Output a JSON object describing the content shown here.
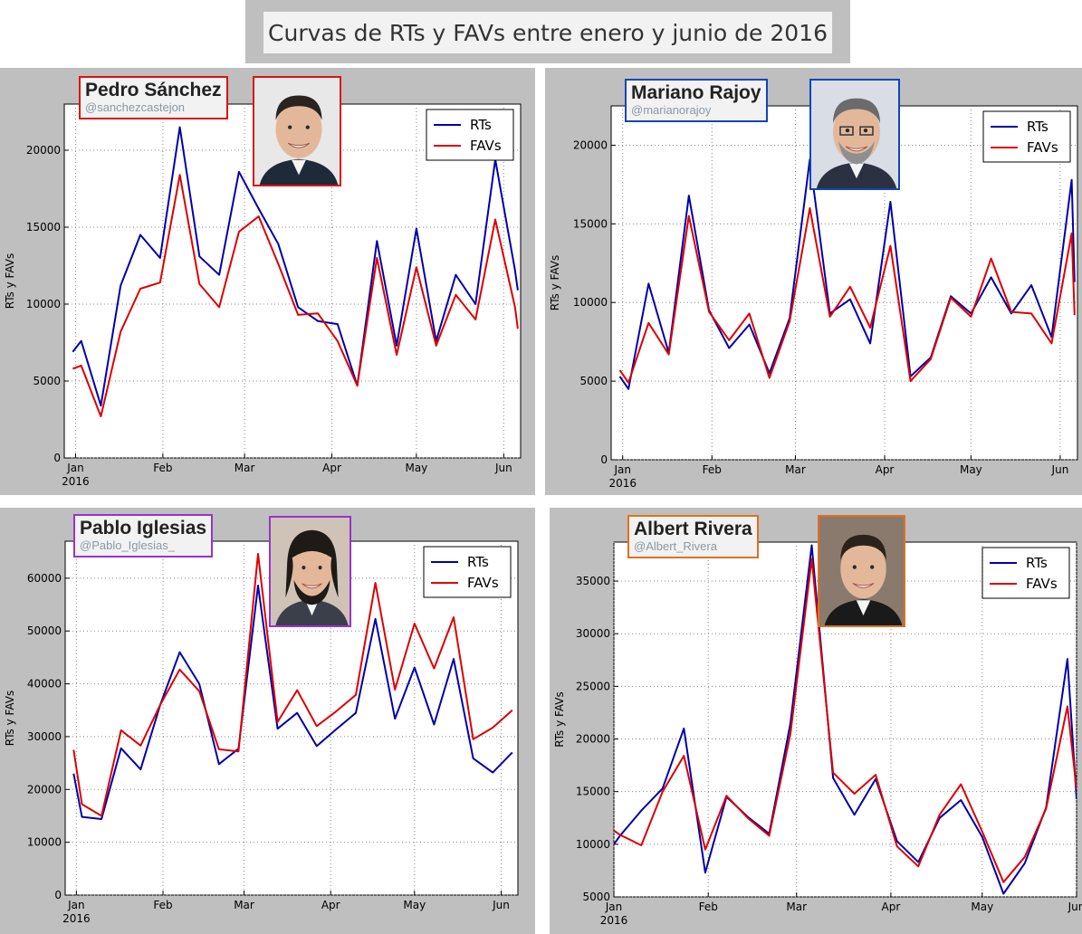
{
  "title": "Curvas de RTs y FAVs entre enero y junio de 2016",
  "colors": {
    "rts": "#0000aa",
    "favs": "#dd0000",
    "panel_bg": "#bfbfbf"
  },
  "chart_data": [
    {
      "type": "line",
      "person": "Pedro Sánchez",
      "handle": "@sanchezcastejon",
      "border_color": "#dd1111",
      "ylabel": "RTs y FAVs",
      "xlabel": "",
      "year_label": "2016",
      "x_ticks": [
        "Jan",
        "Feb",
        "Mar",
        "Apr",
        "May",
        "Jun"
      ],
      "y_ticks": [
        0,
        5000,
        10000,
        15000,
        20000
      ],
      "ylim": [
        0,
        23000
      ],
      "legend": [
        "RTs",
        "FAVs"
      ],
      "legend_position": "top-right",
      "grid": true,
      "series": [
        {
          "name": "RTs",
          "x": [
            "2015-12-31",
            "2016-01-03",
            "2016-01-10",
            "2016-01-17",
            "2016-01-24",
            "2016-01-31",
            "2016-02-07",
            "2016-02-14",
            "2016-02-21",
            "2016-02-28",
            "2016-03-06",
            "2016-03-13",
            "2016-03-20",
            "2016-03-27",
            "2016-04-03",
            "2016-04-10",
            "2016-04-17",
            "2016-04-24",
            "2016-05-01",
            "2016-05-08",
            "2016-05-15",
            "2016-05-22",
            "2016-05-29",
            "2016-06-05",
            "2016-06-06"
          ],
          "values": [
            6900,
            7600,
            3400,
            11200,
            14500,
            13000,
            21500,
            13100,
            11900,
            18600,
            16200,
            13900,
            9800,
            8900,
            8700,
            4700,
            14100,
            7300,
            14900,
            7600,
            11900,
            10000,
            19400,
            12200,
            10900
          ]
        },
        {
          "name": "FAVs",
          "x": [
            "2015-12-31",
            "2016-01-03",
            "2016-01-10",
            "2016-01-17",
            "2016-01-24",
            "2016-01-31",
            "2016-02-07",
            "2016-02-14",
            "2016-02-21",
            "2016-02-28",
            "2016-03-06",
            "2016-03-13",
            "2016-03-20",
            "2016-03-27",
            "2016-04-03",
            "2016-04-10",
            "2016-04-17",
            "2016-04-24",
            "2016-05-01",
            "2016-05-08",
            "2016-05-15",
            "2016-05-22",
            "2016-05-29",
            "2016-06-05",
            "2016-06-06"
          ],
          "values": [
            5800,
            6000,
            2700,
            8200,
            11000,
            11400,
            18400,
            11300,
            9800,
            14700,
            15700,
            12600,
            9300,
            9400,
            7600,
            4700,
            13000,
            6700,
            12400,
            7300,
            10600,
            9000,
            15500,
            9800,
            8400
          ]
        }
      ]
    },
    {
      "type": "line",
      "person": "Mariano Rajoy",
      "handle": "@marianorajoy",
      "border_color": "#1144bb",
      "ylabel": "RTs y FAVs",
      "xlabel": "",
      "year_label": "2016",
      "x_ticks": [
        "Jan",
        "Feb",
        "Mar",
        "Apr",
        "May",
        "Jun"
      ],
      "y_ticks": [
        0,
        5000,
        10000,
        15000,
        20000
      ],
      "ylim": [
        0,
        22500
      ],
      "legend": [
        "RTs",
        "FAVs"
      ],
      "legend_position": "top-right",
      "grid": true,
      "series": [
        {
          "name": "RTs",
          "x": [
            "2015-12-31",
            "2016-01-03",
            "2016-01-10",
            "2016-01-17",
            "2016-01-24",
            "2016-01-31",
            "2016-02-07",
            "2016-02-14",
            "2016-02-21",
            "2016-02-28",
            "2016-03-06",
            "2016-03-13",
            "2016-03-20",
            "2016-03-27",
            "2016-04-03",
            "2016-04-10",
            "2016-04-17",
            "2016-04-24",
            "2016-05-01",
            "2016-05-08",
            "2016-05-15",
            "2016-05-22",
            "2016-05-29",
            "2016-06-05",
            "2016-06-06"
          ],
          "values": [
            5300,
            4500,
            11200,
            6800,
            16800,
            9500,
            7100,
            8600,
            5500,
            9000,
            19100,
            9300,
            10200,
            7400,
            16400,
            5300,
            6500,
            10400,
            9300,
            11600,
            9300,
            11100,
            7800,
            17800,
            11300
          ]
        },
        {
          "name": "FAVs",
          "x": [
            "2015-12-31",
            "2016-01-03",
            "2016-01-10",
            "2016-01-17",
            "2016-01-24",
            "2016-01-31",
            "2016-02-07",
            "2016-02-14",
            "2016-02-21",
            "2016-02-28",
            "2016-03-06",
            "2016-03-13",
            "2016-03-20",
            "2016-03-27",
            "2016-04-03",
            "2016-04-10",
            "2016-04-17",
            "2016-04-24",
            "2016-05-01",
            "2016-05-08",
            "2016-05-15",
            "2016-05-22",
            "2016-05-29",
            "2016-06-05",
            "2016-06-06"
          ],
          "values": [
            5700,
            4900,
            8700,
            6700,
            15500,
            9400,
            7600,
            9300,
            5200,
            8800,
            16000,
            9100,
            11000,
            8400,
            13600,
            5000,
            6400,
            10300,
            9100,
            12800,
            9400,
            9300,
            7400,
            14400,
            9200
          ]
        }
      ]
    },
    {
      "type": "line",
      "person": "Pablo Iglesias",
      "handle": "@Pablo_Iglesias_",
      "border_color": "#9933cc",
      "ylabel": "RTs y FAVs",
      "xlabel": "",
      "year_label": "2016",
      "x_ticks": [
        "Jan",
        "Feb",
        "Mar",
        "Apr",
        "May",
        "Jun"
      ],
      "y_ticks": [
        0,
        10000,
        20000,
        30000,
        40000,
        50000,
        60000
      ],
      "ylim": [
        0,
        67000
      ],
      "legend": [
        "RTs",
        "FAVs"
      ],
      "legend_position": "top-right",
      "grid": true,
      "series": [
        {
          "name": "RTs",
          "x": [
            "2015-12-31",
            "2016-01-03",
            "2016-01-10",
            "2016-01-17",
            "2016-01-24",
            "2016-01-31",
            "2016-02-07",
            "2016-02-14",
            "2016-02-21",
            "2016-02-28",
            "2016-03-06",
            "2016-03-13",
            "2016-03-20",
            "2016-03-27",
            "2016-04-03",
            "2016-04-10",
            "2016-04-17",
            "2016-04-24",
            "2016-05-01",
            "2016-05-08",
            "2016-05-15",
            "2016-05-22",
            "2016-05-29",
            "2016-06-05"
          ],
          "values": [
            23000,
            14800,
            14400,
            27800,
            23800,
            36000,
            46000,
            40000,
            24800,
            27700,
            58600,
            31500,
            34500,
            28200,
            31400,
            34500,
            52300,
            33400,
            43100,
            32300,
            44700,
            25900,
            23200,
            27000
          ]
        },
        {
          "name": "FAVs",
          "x": [
            "2015-12-31",
            "2016-01-03",
            "2016-01-10",
            "2016-01-17",
            "2016-01-24",
            "2016-01-31",
            "2016-02-07",
            "2016-02-14",
            "2016-02-21",
            "2016-02-28",
            "2016-03-06",
            "2016-03-13",
            "2016-03-20",
            "2016-03-27",
            "2016-04-03",
            "2016-04-10",
            "2016-04-17",
            "2016-04-24",
            "2016-05-01",
            "2016-05-08",
            "2016-05-15",
            "2016-05-22",
            "2016-05-29",
            "2016-06-05"
          ],
          "values": [
            27500,
            17200,
            15000,
            31200,
            28300,
            36000,
            42700,
            38600,
            27600,
            27200,
            64600,
            32800,
            38800,
            32000,
            34800,
            37900,
            59100,
            38900,
            51400,
            42900,
            52600,
            29500,
            31700,
            35000
          ]
        }
      ]
    },
    {
      "type": "line",
      "person": "Albert Rivera",
      "handle": "@Albert_Rivera",
      "border_color": "#e07020",
      "ylabel": "RTs y FAVs",
      "xlabel": "",
      "year_label": "2016",
      "x_ticks": [
        "Jan",
        "Feb",
        "Mar",
        "Apr",
        "May",
        "Jun"
      ],
      "y_ticks": [
        5000,
        10000,
        15000,
        20000,
        25000,
        30000,
        35000
      ],
      "ylim": [
        5000,
        38700
      ],
      "legend": [
        "RTs",
        "FAVs"
      ],
      "legend_position": "top-right",
      "grid": true,
      "series": [
        {
          "name": "RTs",
          "x": [
            "2016-01-01",
            "2016-01-03",
            "2016-01-10",
            "2016-01-17",
            "2016-01-24",
            "2016-01-31",
            "2016-02-07",
            "2016-02-14",
            "2016-02-21",
            "2016-02-28",
            "2016-03-06",
            "2016-03-13",
            "2016-03-20",
            "2016-03-27",
            "2016-04-03",
            "2016-04-10",
            "2016-04-17",
            "2016-04-24",
            "2016-05-01",
            "2016-05-08",
            "2016-05-15",
            "2016-05-22",
            "2016-05-29",
            "2016-06-01"
          ],
          "values": [
            10000,
            10800,
            13200,
            15300,
            21000,
            7300,
            14500,
            12600,
            11000,
            21500,
            38400,
            16300,
            12800,
            16200,
            10300,
            8300,
            12500,
            14200,
            10700,
            5300,
            8200,
            13500,
            27600,
            14300
          ]
        },
        {
          "name": "FAVs",
          "x": [
            "2016-01-01",
            "2016-01-03",
            "2016-01-10",
            "2016-01-17",
            "2016-01-24",
            "2016-01-31",
            "2016-02-07",
            "2016-02-14",
            "2016-02-21",
            "2016-02-28",
            "2016-03-06",
            "2016-03-13",
            "2016-03-20",
            "2016-03-27",
            "2016-04-03",
            "2016-04-10",
            "2016-04-17",
            "2016-04-24",
            "2016-05-01",
            "2016-05-08",
            "2016-05-15",
            "2016-05-22",
            "2016-05-29",
            "2016-06-01"
          ],
          "values": [
            11300,
            10900,
            9900,
            15000,
            18400,
            9500,
            14600,
            12500,
            10800,
            20500,
            37100,
            16800,
            14800,
            16600,
            9800,
            7900,
            12800,
            15700,
            11200,
            6400,
            8800,
            13400,
            23100,
            15200
          ]
        }
      ]
    }
  ]
}
